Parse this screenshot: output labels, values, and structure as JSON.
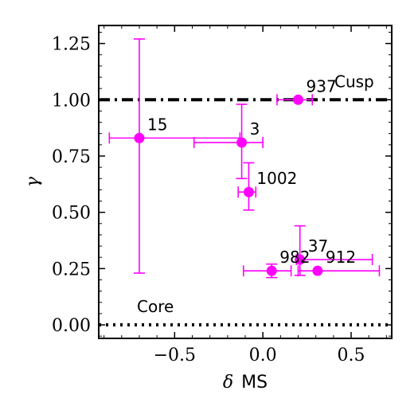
{
  "chart_data": {
    "type": "scatter",
    "xlabel": "δ MS",
    "xlabel_symbol": "δ",
    "xlabel_text": "MS",
    "ylabel": "γ",
    "xlim": [
      -0.93,
      0.73
    ],
    "ylim": [
      -0.06,
      1.33
    ],
    "x_ticks": [
      -0.5,
      0.0,
      0.5
    ],
    "x_tick_labels": [
      "−0.5",
      "0.0",
      "0.5"
    ],
    "y_ticks": [
      0.0,
      0.25,
      0.5,
      0.75,
      1.0,
      1.25
    ],
    "y_tick_labels": [
      "0.00",
      "0.25",
      "0.50",
      "0.75",
      "1.00",
      "1.25"
    ],
    "grid": false,
    "marker_color": "#ff00ff",
    "reference_lines": [
      {
        "label": "Cusp",
        "y": 1.0,
        "style": "dashdot",
        "color": "#000000"
      },
      {
        "label": "Core",
        "y": 0.0,
        "style": "dotted",
        "color": "#000000"
      }
    ],
    "points": [
      {
        "label": "937",
        "x": 0.2,
        "y": 1.0,
        "xerr": [
          0.12,
          0.08
        ],
        "yerr": [
          0.0,
          0.0
        ]
      },
      {
        "label": "15",
        "x": -0.7,
        "y": 0.83,
        "xerr": [
          0.17,
          0.57
        ],
        "yerr": [
          0.6,
          0.44
        ]
      },
      {
        "label": "3",
        "x": -0.12,
        "y": 0.81,
        "xerr": [
          0.27,
          0.12
        ],
        "yerr": [
          0.16,
          0.17
        ]
      },
      {
        "label": "1002",
        "x": -0.08,
        "y": 0.59,
        "xerr": [
          0.06,
          0.04
        ],
        "yerr": [
          0.08,
          0.13
        ]
      },
      {
        "label": "982",
        "x": 0.05,
        "y": 0.24,
        "xerr": [
          0.16,
          0.11
        ],
        "yerr": [
          0.03,
          0.03
        ]
      },
      {
        "label": "37",
        "x": 0.21,
        "y": 0.29,
        "xerr": [
          0.02,
          0.41
        ],
        "yerr": [
          0.07,
          0.15
        ]
      },
      {
        "label": "912",
        "x": 0.31,
        "y": 0.24,
        "xerr": [
          0.11,
          0.35
        ],
        "yerr": [
          0.0,
          0.0
        ]
      }
    ]
  }
}
